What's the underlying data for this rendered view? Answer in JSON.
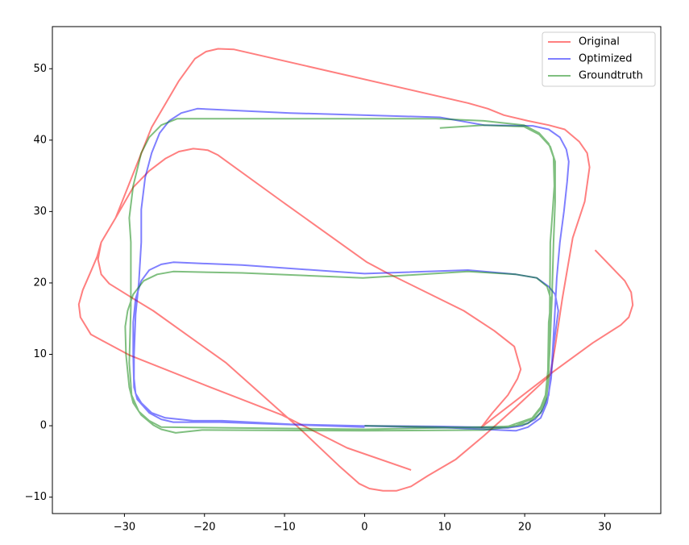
{
  "chart_data": {
    "type": "line",
    "xlim": [
      -39,
      37
    ],
    "ylim": [
      -12.3,
      55.9
    ],
    "xticks": [
      {
        "value": -30,
        "label": "−30"
      },
      {
        "value": -20,
        "label": "−20"
      },
      {
        "value": -10,
        "label": "−10"
      },
      0,
      10,
      20,
      30
    ],
    "yticks": [
      {
        "value": -10,
        "label": "−10"
      },
      0,
      10,
      20,
      30,
      40,
      50
    ],
    "legend": "upper right",
    "series": [
      {
        "name": "Original",
        "color": "#ff0000",
        "x": [
          5.8,
          -2.2,
          -10.3,
          -19.3,
          -29.4,
          -32.9,
          -34.2,
          -35.5,
          -35.7,
          -35.2,
          -34.2,
          -33.4,
          -32.9,
          -31.1,
          -28.9,
          -26.6,
          -23.2,
          -21.2,
          -19.8,
          -18.3,
          -16.3,
          12.9,
          15.4,
          17.4,
          20.4,
          23.0,
          25.0,
          26.8,
          27.8,
          28.1,
          27.5,
          26.0,
          24.7,
          23.8,
          23.2,
          18.9,
          14.9,
          11.4,
          7.9,
          5.8,
          4.0,
          2.3,
          0.6,
          -0.7,
          -3.2,
          -8.3,
          -17.3,
          -26.4,
          -28.6,
          -31.9,
          -32.9,
          -33.3,
          -32.9,
          -31.1,
          -28.9,
          -26.9,
          -24.9,
          -23.2,
          -21.4,
          -19.6,
          -18.3,
          -10.3,
          0.3,
          2.8,
          12.4,
          16.2,
          18.7,
          19.5,
          19.1,
          17.9,
          15.9,
          14.6,
          23.5,
          28.5,
          32.0,
          33.0,
          33.5,
          33.3,
          32.5,
          28.8
        ],
        "values": [
          -6.2,
          -3.1,
          1.5,
          5.4,
          9.9,
          12.0,
          12.8,
          15.2,
          17.0,
          19.0,
          21.6,
          23.7,
          25.7,
          29.1,
          35.3,
          41.8,
          48.3,
          51.4,
          52.4,
          52.8,
          52.7,
          45.2,
          44.4,
          43.5,
          42.7,
          42.1,
          41.5,
          39.8,
          38.2,
          36.2,
          31.4,
          26.3,
          17.8,
          11.1,
          7.1,
          2.6,
          -1.4,
          -4.7,
          -7.0,
          -8.5,
          -9.1,
          -9.1,
          -8.8,
          -8.1,
          -5.6,
          -0.2,
          8.8,
          16.1,
          17.6,
          19.9,
          21.2,
          23.3,
          25.7,
          29.1,
          33.4,
          35.7,
          37.4,
          38.4,
          38.8,
          38.6,
          37.9,
          31.4,
          22.9,
          21.4,
          16.1,
          13.3,
          11.1,
          7.9,
          6.6,
          4.3,
          1.7,
          -0.2,
          7.5,
          11.6,
          14.1,
          15.2,
          16.9,
          18.7,
          20.3,
          24.6
        ]
      },
      {
        "name": "Optimized",
        "color": "#0000ff",
        "x": [
          0,
          9.9,
          17.9,
          19.7,
          21.3,
          22.3,
          23.0,
          23.4,
          23.7,
          24.0,
          24.4,
          24.9,
          25.3,
          25.5,
          25.2,
          24.4,
          23.0,
          21.0,
          14.9,
          9.4,
          -9.3,
          -20.9,
          -22.9,
          -24.4,
          -25.6,
          -26.6,
          -27.4,
          -27.9,
          -27.9,
          -28.2,
          -28.6,
          -28.8,
          -28.8,
          -28.6,
          -27.9,
          -26.6,
          -24.9,
          -21.4,
          -17.8,
          -9.3,
          10.9,
          18.9,
          20.4,
          22.0,
          22.8,
          23.3,
          23.6,
          24.2,
          23.8,
          23.0,
          21.5,
          18.9,
          12.9,
          0,
          -15.3,
          -23.9,
          -25.4,
          -26.9,
          -27.9,
          -28.6,
          -28.9,
          -28.9,
          -28.8,
          -28.4,
          -26.9,
          -25.4,
          -23.9,
          -18.1,
          0
        ],
        "values": [
          0,
          -0.1,
          -0.3,
          0,
          0.9,
          2.3,
          4.3,
          8.8,
          14.5,
          20.7,
          25.7,
          30.0,
          34.2,
          37.0,
          38.7,
          40.4,
          41.5,
          42.0,
          42.1,
          43.2,
          43.8,
          44.4,
          43.8,
          42.7,
          41.0,
          38.2,
          34.8,
          30.3,
          25.7,
          20.1,
          15.6,
          9.9,
          6.6,
          4.5,
          3.2,
          1.8,
          1.1,
          0.7,
          0.7,
          0.2,
          -0.3,
          -0.7,
          -0.2,
          1.1,
          3.2,
          6.6,
          11.1,
          16.1,
          18.4,
          19.5,
          20.7,
          21.2,
          21.8,
          21.3,
          22.5,
          22.9,
          22.6,
          21.8,
          20.3,
          17.8,
          14.5,
          9.9,
          5.4,
          3.7,
          1.8,
          0.9,
          0.5,
          0.5,
          -0.2
        ]
      },
      {
        "name": "Groundtruth",
        "color": "#008000",
        "x": [
          0,
          14.9,
          18.9,
          20.8,
          22.0,
          22.6,
          22.9,
          23.0,
          23.3,
          22.8,
          21.5,
          18.9,
          12.9,
          -0.2,
          -15.3,
          -23.9,
          -25.9,
          -27.6,
          -28.9,
          -29.6,
          -29.9,
          -29.8,
          -29.4,
          -28.9,
          -27.9,
          -26.4,
          -25.4,
          -23.6,
          -20.3,
          0,
          14.9,
          17.9,
          20.4,
          22.0,
          22.7,
          23.0,
          23.1,
          23.2,
          23.5,
          23.7,
          23.6,
          23.0,
          21.8,
          19.9,
          14.9,
          8.9,
          -23.4,
          -25.4,
          -26.9,
          -27.9,
          -28.9,
          -29.4,
          -29.2,
          -29.2,
          -29.4,
          -29.1,
          -28.2,
          -26.9,
          -25.4,
          0,
          17.9,
          21.0,
          22.2,
          22.8,
          23.1,
          23.4,
          23.6,
          23.8,
          23.8,
          23.2,
          21.8,
          19.9,
          14.9,
          9.4
        ],
        "values": [
          0,
          -0.3,
          0,
          0.9,
          2.6,
          4.3,
          7.7,
          14.5,
          17.6,
          19.5,
          20.7,
          21.2,
          21.6,
          20.7,
          21.4,
          21.6,
          21.2,
          20.3,
          18.4,
          16.1,
          13.9,
          9.9,
          5.4,
          3.2,
          1.5,
          0.1,
          -0.5,
          -1.0,
          -0.6,
          -0.7,
          -0.6,
          -0.2,
          0.3,
          1.8,
          3.7,
          6.6,
          12.2,
          25.7,
          30.3,
          33.6,
          37.6,
          39.5,
          41.0,
          42.1,
          42.7,
          43.0,
          43.0,
          42.1,
          40.4,
          38.2,
          33.6,
          29.1,
          25.7,
          16.7,
          8.8,
          4.3,
          2.0,
          0.7,
          -0.2,
          -0.5,
          -0.1,
          1.1,
          2.6,
          4.9,
          9.9,
          17.8,
          25.7,
          31.4,
          37.0,
          39.1,
          40.8,
          41.9,
          42.1,
          41.7
        ]
      }
    ]
  }
}
